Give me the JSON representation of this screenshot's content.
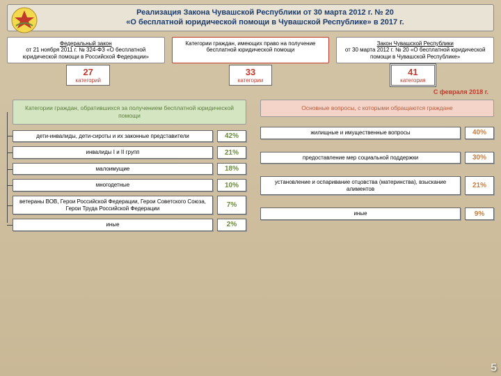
{
  "header": {
    "line1": "Реализация Закона Чувашской Республики от 30 марта 2012 г. № 20",
    "line2": "«О бесплатной юридической помощи в Чувашской Республике» в 2017 г."
  },
  "laws": {
    "federal": {
      "head": "Федеральный закон",
      "body": "от 21 ноября 2011 г. № 324-ФЗ «О бесплатной юридической помощи в Российской Федерации»"
    },
    "middle": {
      "body": "Категории граждан, имеющих право на получение бесплатной юридической помощи"
    },
    "chuvash": {
      "head": "Закон Чувашской Республики",
      "body": "от 30 марта 2012 г. № 20 «О бесплатной юридической помощи в Чувашской Республике»"
    }
  },
  "counts": [
    {
      "num": "27",
      "lbl": "категорий"
    },
    {
      "num": "33",
      "lbl": "категории"
    },
    {
      "num": "41",
      "lbl": "категория"
    }
  ],
  "feb_note": "С февраля 2018 г.",
  "left": {
    "header": "Категории граждан, обратившихся за получением бесплатной юридической помощи",
    "items": [
      {
        "label": "дети-инвалиды, дети-сироты и их законные представители",
        "pct": "42%"
      },
      {
        "label": "инвалиды I и II групп",
        "pct": "21%"
      },
      {
        "label": "малоимущие",
        "pct": "18%"
      },
      {
        "label": "многодетные",
        "pct": "10%"
      },
      {
        "label": "ветераны ВОВ, Герои Российской Федерации, Герои Советского Союза, Герои Труда Российской Федерации",
        "pct": "7%"
      },
      {
        "label": "иные",
        "pct": "2%"
      }
    ],
    "colors": {
      "header_bg": "#d4e6c1",
      "header_fg": "#5a7a3a",
      "pct_color": "#6a8a3a"
    }
  },
  "right": {
    "header": "Основные вопросы, с которыми обращаются граждане",
    "items": [
      {
        "label": "жилищные и имущественные вопросы",
        "pct": "40%"
      },
      {
        "label": "предоставление мер социальной поддержки",
        "pct": "30%"
      },
      {
        "label": "установление и оспаривание отцовства (материнства), взыскание алиментов",
        "pct": "21%"
      },
      {
        "label": "иные",
        "pct": "9%"
      }
    ],
    "colors": {
      "header_bg": "#f4d4c8",
      "header_fg": "#b85a3a",
      "pct_color": "#c77a3a"
    }
  },
  "page_number": "5"
}
